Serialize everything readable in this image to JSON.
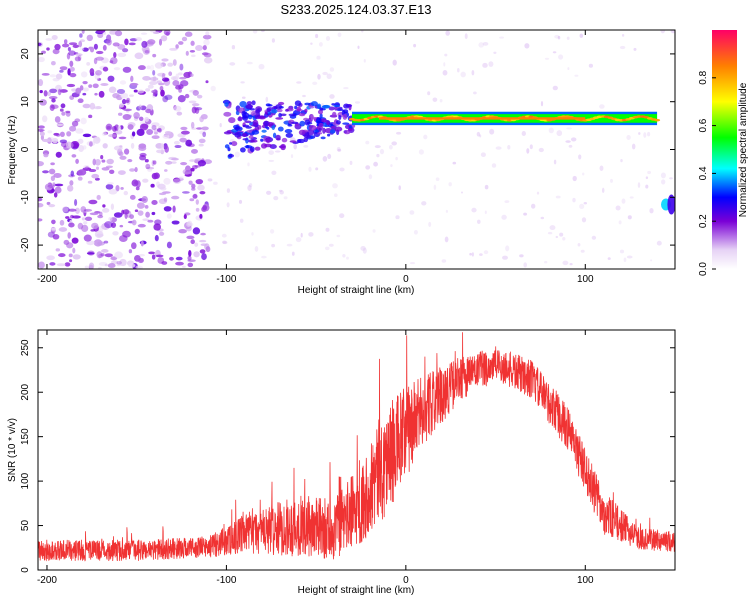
{
  "figure": {
    "title": "S233.2025.124.03.37.E13"
  },
  "chart_data": [
    {
      "type": "heatmap",
      "xlabel": "Height of straight line (km)",
      "ylabel": "Frequency (Hz)",
      "xlim": [
        -205,
        150
      ],
      "ylim": [
        -25,
        25
      ],
      "xticks": [
        -200,
        -100,
        0,
        100
      ],
      "yticks": [
        -20,
        -10,
        0,
        10,
        20
      ],
      "colorbar": {
        "label": "Normalized spectral amplitude",
        "range": [
          0,
          1
        ],
        "ticks": [
          0.0,
          0.2,
          0.4,
          0.6,
          0.8
        ],
        "tick_labels": [
          "0.0",
          "0.2",
          "0.4",
          "0.6",
          "0.8"
        ]
      },
      "signal_line": {
        "x_start": -30,
        "x_end": 140,
        "frequency": 6.5,
        "amplitude": 0.85
      },
      "cluster": {
        "x_range": [
          -100,
          -30
        ],
        "frequency_range": [
          -2,
          13
        ]
      },
      "edge_feature": {
        "x": 145,
        "frequency": -11.5,
        "amplitude": 0.3
      }
    },
    {
      "type": "line",
      "xlabel": "Height of straight line (km)",
      "ylabel": "SNR (10 * v/v)",
      "xlim": [
        -205,
        150
      ],
      "ylim": [
        0,
        270
      ],
      "xticks": [
        -200,
        -100,
        0,
        100
      ],
      "yticks": [
        0,
        50,
        100,
        150,
        200,
        250
      ],
      "color": "#f03232",
      "envelope": {
        "x": [
          -205,
          -150,
          -110,
          -90,
          -60,
          -40,
          -25,
          -15,
          -5,
          10,
          30,
          50,
          70,
          90,
          110,
          130,
          150
        ],
        "y": [
          22,
          22,
          26,
          40,
          50,
          45,
          75,
          110,
          140,
          180,
          215,
          232,
          215,
          160,
          65,
          35,
          32
        ],
        "noise": [
          12,
          12,
          12,
          22,
          35,
          35,
          45,
          60,
          60,
          40,
          25,
          20,
          22,
          25,
          25,
          12,
          12
        ]
      }
    }
  ]
}
